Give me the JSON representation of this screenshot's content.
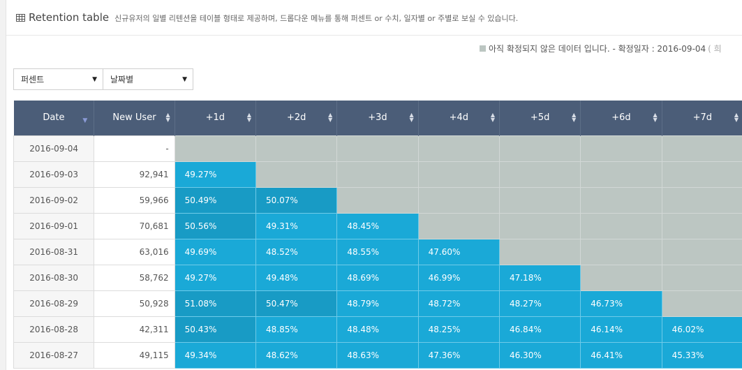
{
  "header": {
    "title": "Retention table",
    "subtitle": "신규유저의 일별 리텐션을 테이블 형태로 제공하며, 드롭다운 메뉴를 통해 퍼센트 or 수치, 일자별 or 주별로 보실 수 있습니다."
  },
  "legend": {
    "text": "아직 확정되지 않은 데이터 입니다. - 확정일자 : 2016-09-04",
    "tail": "( 희",
    "swatch_color": "#bcc6c2"
  },
  "filters": {
    "mode": "퍼센트",
    "period": "날짜별"
  },
  "table": {
    "headers": [
      "Date",
      "New User",
      "+1d",
      "+2d",
      "+3d",
      "+4d",
      "+5d",
      "+6d",
      "+7d"
    ],
    "rows": [
      {
        "date": "2016-09-04",
        "users": "-",
        "values": []
      },
      {
        "date": "2016-09-03",
        "users": "92,941",
        "values": [
          "49.27%"
        ]
      },
      {
        "date": "2016-09-02",
        "users": "59,966",
        "values": [
          "50.49%",
          "50.07%"
        ]
      },
      {
        "date": "2016-09-01",
        "users": "70,681",
        "values": [
          "50.56%",
          "49.31%",
          "48.45%"
        ]
      },
      {
        "date": "2016-08-31",
        "users": "63,016",
        "values": [
          "49.69%",
          "48.52%",
          "48.55%",
          "47.60%"
        ]
      },
      {
        "date": "2016-08-30",
        "users": "58,762",
        "values": [
          "49.27%",
          "49.48%",
          "48.69%",
          "46.99%",
          "47.18%"
        ]
      },
      {
        "date": "2016-08-29",
        "users": "50,928",
        "values": [
          "51.08%",
          "50.47%",
          "48.79%",
          "48.72%",
          "48.27%",
          "46.73%"
        ]
      },
      {
        "date": "2016-08-28",
        "users": "42,311",
        "values": [
          "50.43%",
          "48.85%",
          "48.48%",
          "48.25%",
          "46.84%",
          "46.14%",
          "46.02%"
        ]
      },
      {
        "date": "2016-08-27",
        "users": "49,115",
        "values": [
          "49.34%",
          "48.62%",
          "48.63%",
          "47.36%",
          "46.30%",
          "46.41%",
          "45.33%"
        ]
      }
    ]
  },
  "colors": {
    "header_bg": "#4b5d78",
    "cell_high": "#189bc5",
    "cell": "#1aa9d7",
    "pending": "#bcc6c2"
  }
}
